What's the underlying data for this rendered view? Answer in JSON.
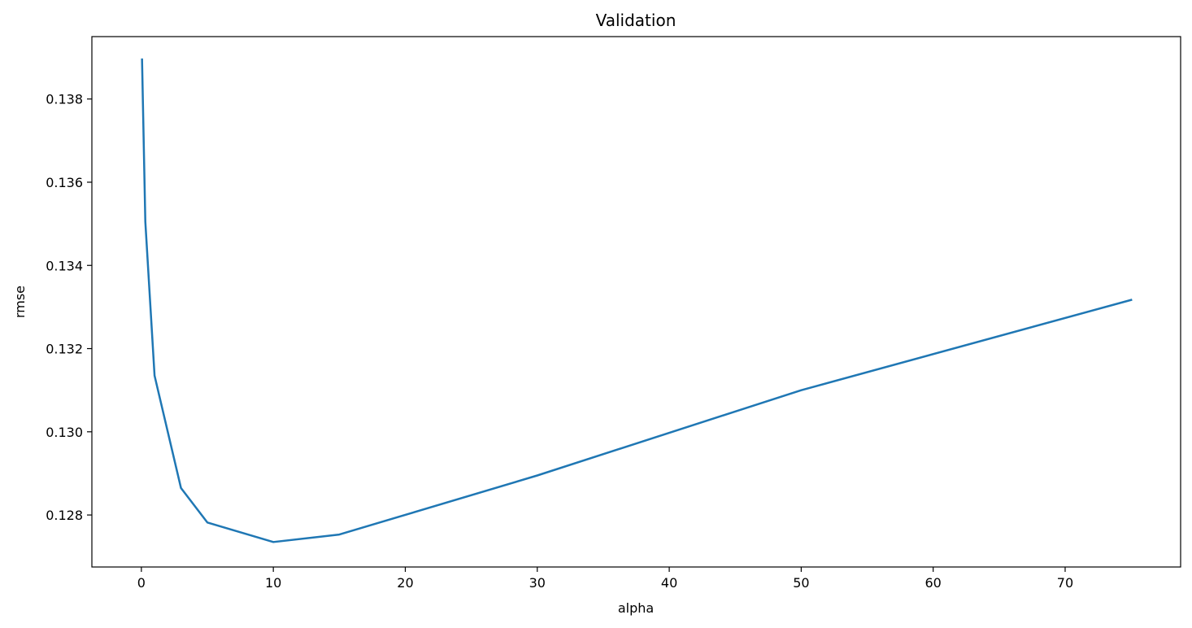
{
  "chart_data": {
    "type": "line",
    "title": "Validation",
    "xlabel": "alpha",
    "ylabel": "rmse",
    "xlim": [
      -3.75,
      78.75
    ],
    "ylim": [
      0.12675,
      0.1395
    ],
    "xticks": [
      0,
      10,
      20,
      30,
      40,
      50,
      60,
      70
    ],
    "yticks": [
      0.128,
      0.13,
      0.132,
      0.134,
      0.136,
      0.138
    ],
    "xtick_labels": [
      "0",
      "10",
      "20",
      "30",
      "40",
      "50",
      "60",
      "70"
    ],
    "ytick_labels": [
      "0.128",
      "0.130",
      "0.132",
      "0.134",
      "0.136",
      "0.138"
    ],
    "grid": false,
    "series": [
      {
        "color": "#1f77b4",
        "x": [
          0.05,
          0.3,
          1,
          3,
          5,
          10,
          15,
          30,
          50,
          75
        ],
        "y": [
          0.13895,
          0.13505,
          0.13135,
          0.12865,
          0.12782,
          0.12735,
          0.12753,
          0.12895,
          0.131,
          0.13317
        ]
      }
    ]
  }
}
